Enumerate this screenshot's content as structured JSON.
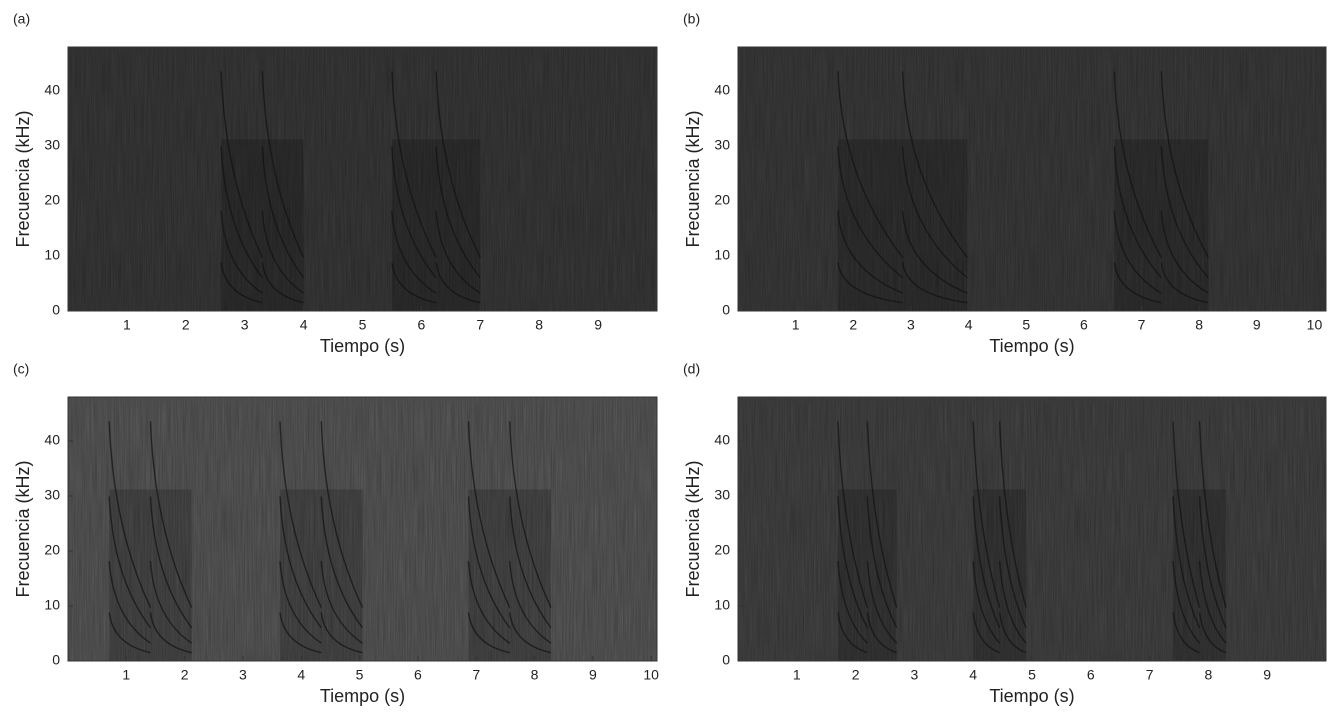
{
  "chart_data": [
    {
      "type": "spectrogram",
      "label": "(a)",
      "xlabel": "Tiempo (s)",
      "ylabel": "Frecuencia (kHz)",
      "xlim": [
        0,
        10
      ],
      "ylim": [
        0,
        48
      ],
      "xticks": [
        1,
        2,
        3,
        4,
        5,
        6,
        7,
        8,
        9
      ],
      "yticks": [
        0,
        10,
        20,
        30,
        40
      ],
      "color": "#3b3b3b"
    },
    {
      "type": "spectrogram",
      "label": "(b)",
      "xlabel": "Tiempo (s)",
      "ylabel": "Frecuencia (kHz)",
      "xlim": [
        0,
        10.2
      ],
      "ylim": [
        0,
        48
      ],
      "xticks": [
        1,
        2,
        3,
        4,
        5,
        6,
        7,
        8,
        9,
        10
      ],
      "yticks": [
        0,
        10,
        20,
        30,
        40
      ],
      "color": "#3d3d3d"
    },
    {
      "type": "spectrogram",
      "label": "(c)",
      "xlabel": "Tiempo (s)",
      "ylabel": "Frecuencia (kHz)",
      "xlim": [
        0,
        10.1
      ],
      "ylim": [
        0,
        48
      ],
      "xticks": [
        1,
        2,
        3,
        4,
        5,
        6,
        7,
        8,
        9,
        10
      ],
      "yticks": [
        0,
        10,
        20,
        30,
        40
      ],
      "color": "#5c5c5c"
    },
    {
      "type": "spectrogram",
      "label": "(d)",
      "xlabel": "Tiempo (s)",
      "ylabel": "Frecuencia (kHz)",
      "xlim": [
        0,
        10
      ],
      "ylim": [
        0,
        48
      ],
      "xticks": [
        1,
        2,
        3,
        4,
        5,
        6,
        7,
        8,
        9
      ],
      "yticks": [
        0,
        10,
        20,
        30,
        40
      ],
      "color": "#464646"
    }
  ]
}
